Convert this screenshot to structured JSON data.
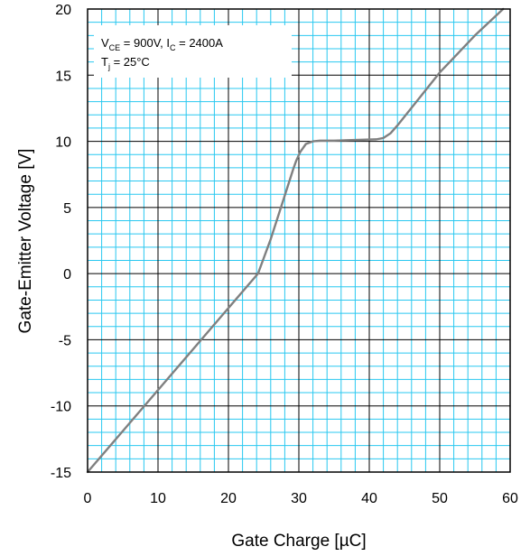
{
  "chart_data": {
    "type": "line",
    "xlabel": "Gate Charge [µC]",
    "ylabel": "Gate-Emitter Voltage [V]",
    "xlim": [
      0,
      60
    ],
    "ylim": [
      -15,
      20
    ],
    "x_ticks": [
      "0",
      "10",
      "20",
      "30",
      "40",
      "50",
      "60"
    ],
    "y_ticks": [
      "-15",
      "-10",
      "-5",
      "0",
      "5",
      "10",
      "15",
      "20"
    ],
    "grid": true,
    "annotation": {
      "line1": {
        "a": "V",
        "a_sub": "CE",
        "b": " = 900V, I",
        "b_sub": "C",
        "c": " = 2400A"
      },
      "line2": {
        "a": "T",
        "a_sub": "j",
        "b": " = 25°C"
      }
    },
    "series": [
      {
        "x": [
          0,
          24.2,
          26,
          28,
          29.2,
          29.6,
          30.2,
          31,
          32,
          33,
          35,
          38,
          41,
          42,
          43,
          44,
          50,
          55,
          59
        ],
        "y": [
          -15,
          0,
          2.6,
          5.9,
          7.9,
          8.5,
          9.2,
          9.8,
          10.0,
          10.05,
          10.05,
          10.1,
          10.15,
          10.25,
          10.6,
          11.2,
          15.2,
          18.0,
          20.0
        ]
      }
    ],
    "line_color": "#808080",
    "grid_minor_color": "#29c8f0",
    "grid_major_color": "#000000"
  }
}
